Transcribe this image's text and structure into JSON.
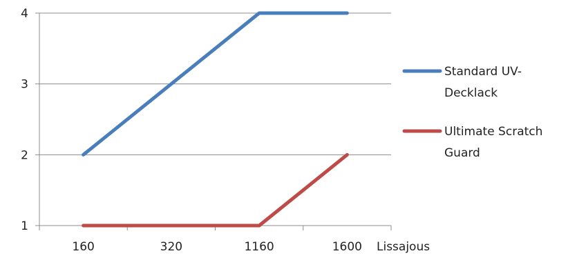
{
  "chart_data": {
    "type": "line",
    "categories": [
      "160",
      "320",
      "1160",
      "1600"
    ],
    "xlabel": "Lissajous",
    "ylabel": "",
    "ylim": [
      1,
      4
    ],
    "yticks": [
      "1",
      "2",
      "3",
      "4"
    ],
    "grid": true,
    "legend_position": "right",
    "series": [
      {
        "name": "Standard UV-Decklack",
        "legend_lines": [
          "Standard UV-",
          "Decklack"
        ],
        "values": [
          2,
          3,
          4,
          4
        ],
        "color": "#4a7ebb"
      },
      {
        "name": "Ultimate Scratch Guard",
        "legend_lines": [
          "Ultimate Scratch",
          "Guard"
        ],
        "values": [
          1,
          1,
          1,
          2
        ],
        "color": "#be4b48"
      }
    ]
  }
}
